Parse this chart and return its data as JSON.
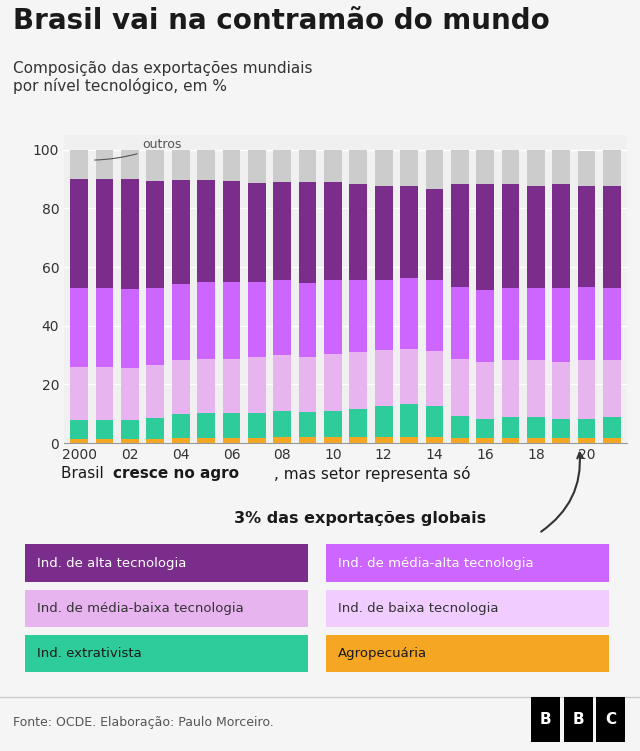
{
  "title": "Brasil vai na contramão do mundo",
  "subtitle": "Composição das exportações mundiais\npor nível tecnológico, em %",
  "years": [
    2000,
    2001,
    2002,
    2003,
    2004,
    2005,
    2006,
    2007,
    2008,
    2009,
    2010,
    2011,
    2012,
    2013,
    2014,
    2015,
    2016,
    2017,
    2018,
    2019,
    2020,
    2021
  ],
  "agropecuaria": [
    1.5,
    1.5,
    1.5,
    1.5,
    1.8,
    1.8,
    1.8,
    1.8,
    2.0,
    2.0,
    2.0,
    2.2,
    2.2,
    2.2,
    2.0,
    1.8,
    1.8,
    1.8,
    1.8,
    1.8,
    1.8,
    1.8
  ],
  "extrativista": [
    6.5,
    6.5,
    6.5,
    7.0,
    8.0,
    8.5,
    8.5,
    8.5,
    9.0,
    8.5,
    9.0,
    9.5,
    10.5,
    11.0,
    10.5,
    7.5,
    6.5,
    7.0,
    7.0,
    6.5,
    6.5,
    7.0
  ],
  "media_baixa": [
    18.0,
    18.0,
    17.5,
    18.0,
    18.5,
    18.5,
    18.5,
    19.0,
    19.0,
    19.0,
    19.5,
    19.5,
    19.0,
    19.0,
    19.0,
    19.5,
    19.5,
    19.5,
    19.5,
    19.5,
    20.0,
    19.5
  ],
  "media_alta": [
    27.0,
    27.0,
    27.0,
    26.5,
    26.0,
    26.0,
    26.0,
    25.5,
    25.5,
    25.0,
    25.0,
    24.5,
    24.0,
    24.0,
    24.0,
    24.5,
    24.5,
    24.5,
    24.5,
    25.0,
    25.0,
    24.5
  ],
  "alta": [
    37.0,
    37.0,
    37.5,
    36.5,
    35.5,
    35.0,
    34.5,
    34.0,
    33.5,
    34.5,
    33.5,
    32.5,
    32.0,
    31.5,
    31.0,
    35.0,
    36.0,
    35.5,
    35.0,
    35.5,
    34.5,
    35.0
  ],
  "outros": [
    10.0,
    10.0,
    10.0,
    10.5,
    10.2,
    10.2,
    10.7,
    11.2,
    11.0,
    11.0,
    11.0,
    11.8,
    12.3,
    12.3,
    13.5,
    11.7,
    11.7,
    11.7,
    12.2,
    11.7,
    11.7,
    12.2
  ],
  "colors": {
    "agropecuaria": "#F5A623",
    "extrativista": "#2ECC9A",
    "media_baixa": "#E8B4F0",
    "media_alta": "#CC66FF",
    "alta": "#7B2D8B",
    "outros": "#CCCCCC"
  },
  "legend": [
    {
      "label": "Ind. de alta tecnologia",
      "color": "#7B2D8B"
    },
    {
      "label": "Ind. de média-alta tecnologia",
      "color": "#CC66FF"
    },
    {
      "label": "Ind. de média-baixa tecnologia",
      "color": "#E8B4F0"
    },
    {
      "label": "Ind. de baixa tecnologia",
      "color": "#F0CCFF"
    },
    {
      "label": "Ind. extrativista",
      "color": "#2ECC9A"
    },
    {
      "label": "Agropecuária",
      "color": "#F5A623"
    }
  ],
  "annotation1": "Brasil ",
  "annotation1b": "cresce no agro",
  "annotation2": ", mas setor representa só",
  "annotation3": "3% das exportações globais",
  "source": "Fonte: OCDE. Elaboração: Paulo Morceiro.",
  "outros_label": "outros",
  "ylim": [
    0,
    105
  ],
  "background": "#f5f5f5",
  "plot_bg": "#f0f0f0"
}
